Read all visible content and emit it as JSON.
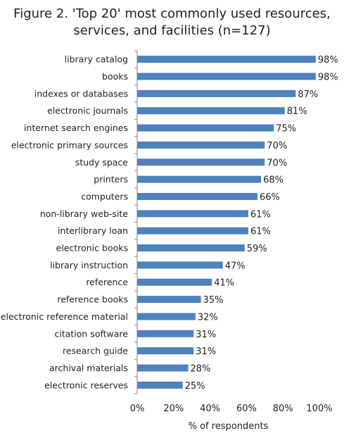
{
  "title_lines": [
    "Figure 2. 'Top 20' most commonly used resources,",
    "services, and facilities (n=127)"
  ],
  "chart_data": {
    "type": "bar",
    "orientation": "horizontal",
    "title": "Figure 2. 'Top 20' most commonly used resources, services, and facilities (n=127)",
    "xlabel": "% of respondents",
    "ylabel": "",
    "xlim": [
      0,
      100
    ],
    "xticks": [
      "0%",
      "20%",
      "40%",
      "60%",
      "80%",
      "100%"
    ],
    "grid": false,
    "bar_color": "#4f81bd",
    "categories": [
      "library catalog",
      "books",
      "indexes or databases",
      "electronic journals",
      "internet search engines",
      "electronic primary sources",
      "study space",
      "printers",
      "computers",
      "non-library web-site",
      "interlibrary loan",
      "electronic books",
      "library instruction",
      "reference",
      "reference books",
      "electronic reference material",
      "citation software",
      "research guide",
      "archival materials",
      "electronic reserves"
    ],
    "values": [
      98,
      98,
      87,
      81,
      75,
      70,
      70,
      68,
      66,
      61,
      61,
      59,
      47,
      41,
      35,
      32,
      31,
      31,
      28,
      25
    ],
    "value_labels": [
      "98%",
      "98%",
      "87%",
      "81%",
      "75%",
      "70%",
      "70%",
      "68%",
      "66%",
      "61%",
      "61%",
      "59%",
      "47%",
      "41%",
      "35%",
      "32%",
      "31%",
      "31%",
      "28%",
      "25%"
    ]
  }
}
